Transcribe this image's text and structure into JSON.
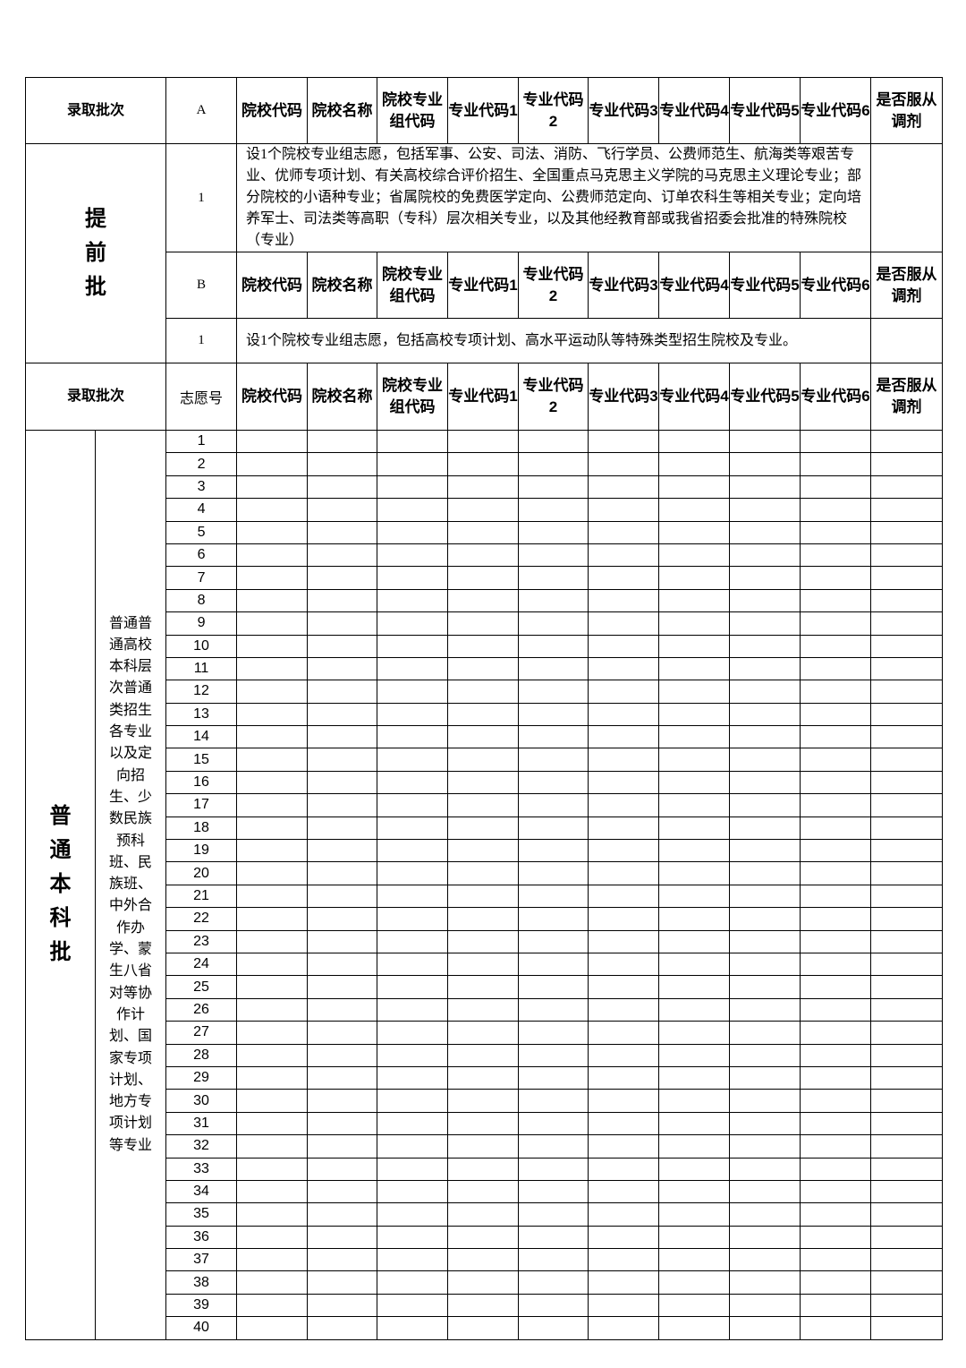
{
  "headers": {
    "batch": "录取批次",
    "a": "A",
    "b": "B",
    "wish_no": "志愿号",
    "cols": [
      "院校代码",
      "院校名称",
      "院校专业组代码",
      "专业代码1",
      "专业代码2",
      "专业代码3",
      "专业代码4",
      "专业代码5",
      "专业代码6",
      "是否服从调剂"
    ]
  },
  "early": {
    "title": "提前批",
    "a_row_no": "1",
    "a_desc": "设1个院校专业组志愿，包括军事、公安、司法、消防、飞行学员、公费师范生、航海类等艰苦专业、优师专项计划、有关高校综合评价招生、全国重点马克思主义学院的马克思主义理论专业；部分院校的小语种专业；省属院校的免费医学定向、公费师范定向、订单农科生等相关专业；定向培养军士、司法类等高职（专科）层次相关专业，以及其他经教育部或我省招委会批准的特殊院校（专业）",
    "b_row_no": "1",
    "b_desc": "设1个院校专业组志愿，包括高校专项计划、高水平运动队等特殊类型招生院校及专业。"
  },
  "regular": {
    "title": "普通本科批",
    "scope": "普通普通高校本科层次普通类招生各专业以及定向招生、少数民族预科班、民族班、中外合作办学、蒙生八省对等协作计划、国家专项计划、地方专项计划等专业",
    "wish_numbers": [
      "1",
      "2",
      "3",
      "4",
      "5",
      "6",
      "7",
      "8",
      "9",
      "10",
      "11",
      "12",
      "13",
      "14",
      "15",
      "16",
      "17",
      "18",
      "19",
      "20",
      "21",
      "22",
      "23",
      "24",
      "25",
      "26",
      "27",
      "28",
      "29",
      "30",
      "31",
      "32",
      "33",
      "34",
      "35",
      "36",
      "37",
      "38",
      "39",
      "40"
    ]
  }
}
